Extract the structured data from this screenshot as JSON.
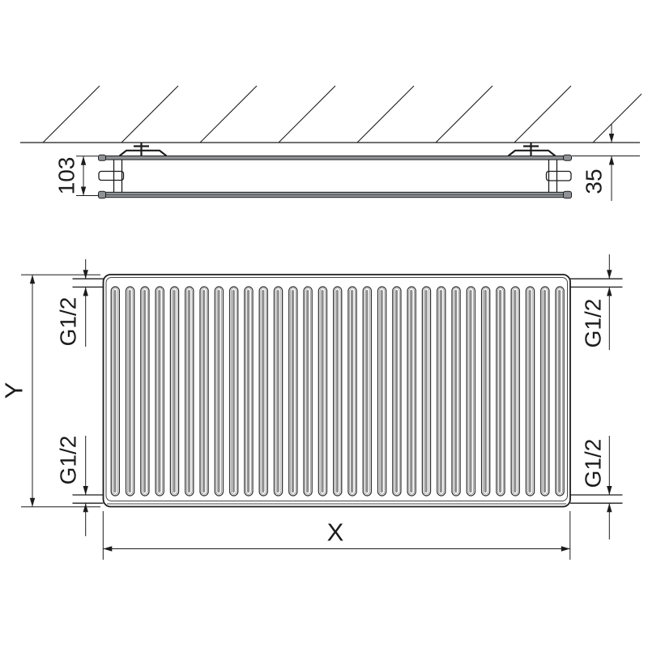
{
  "drawing": {
    "side_view": {
      "depth_label": "103",
      "wall_distance_label": "35"
    },
    "front_view": {
      "width_label": "X",
      "height_label": "Y",
      "connections": {
        "top_left": "G1/2",
        "top_right": "G1/2",
        "bottom_left": "G1/2",
        "bottom_right": "G1/2"
      },
      "fin_count": 31
    },
    "colors": {
      "line": "#1c1c1c",
      "panel_fill": "#8e9296",
      "fin_shade": "#8f8f8f",
      "background": "#ffffff"
    }
  }
}
